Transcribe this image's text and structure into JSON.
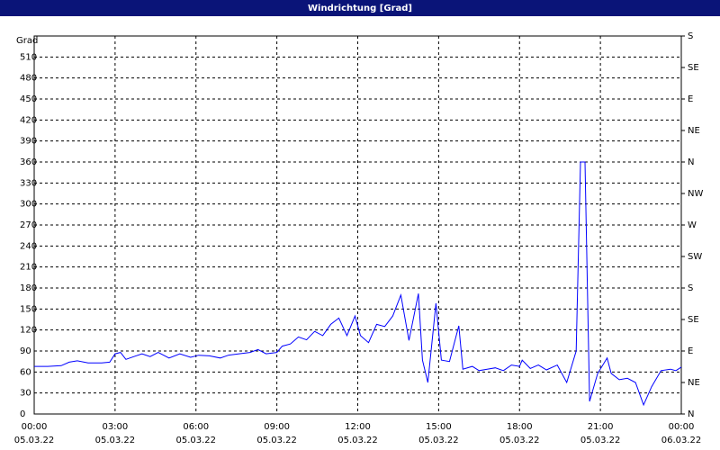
{
  "chart_data": {
    "type": "line",
    "title": "Windrichtung [Grad]",
    "ylabel": "Grad",
    "x": [
      0,
      0.5,
      1,
      1.3,
      1.6,
      2,
      2.5,
      2.8,
      3,
      3.2,
      3.4,
      3.7,
      4,
      4.3,
      4.6,
      5,
      5.4,
      5.8,
      6.1,
      6.5,
      6.9,
      7.2,
      7.6,
      8,
      8.3,
      8.6,
      9,
      9.2,
      9.5,
      9.8,
      10.1,
      10.4,
      10.7,
      11,
      11.3,
      11.6,
      11.9,
      12.1,
      12.4,
      12.7,
      13,
      13.3,
      13.6,
      13.9,
      14.25,
      14.4,
      14.6,
      14.9,
      15.1,
      15.4,
      15.75,
      15.9,
      16.25,
      16.5,
      16.8,
      17.1,
      17.4,
      17.7,
      18,
      18.1,
      18.4,
      18.7,
      19,
      19.4,
      19.75,
      20.1,
      20.26,
      20.43,
      20.6,
      20.9,
      21.25,
      21.4,
      21.7,
      22,
      22.3,
      22.6,
      22.9,
      23.25,
      23.6,
      23.8,
      24
    ],
    "values": [
      68,
      68,
      69,
      74,
      76,
      73,
      73,
      74,
      86,
      88,
      78,
      82,
      86,
      82,
      88,
      80,
      86,
      81,
      84,
      83,
      80,
      84,
      86,
      88,
      92,
      86,
      88,
      97,
      100,
      110,
      106,
      118,
      112,
      128,
      137,
      112,
      140,
      112,
      102,
      128,
      125,
      140,
      170,
      105,
      172,
      77,
      45,
      158,
      77,
      75,
      126,
      64,
      68,
      62,
      64,
      66,
      62,
      70,
      68,
      77,
      65,
      70,
      63,
      70,
      45,
      90,
      360,
      360,
      18,
      58,
      80,
      58,
      49,
      51,
      45,
      13,
      39,
      62,
      64,
      62,
      67
    ],
    "color": "#0000ff",
    "xlim": [
      0,
      24
    ],
    "xticks": [
      {
        "value": 0,
        "label": "00:00"
      },
      {
        "value": 3,
        "label": "03:00"
      },
      {
        "value": 6,
        "label": "06:00"
      },
      {
        "value": 9,
        "label": "09:00"
      },
      {
        "value": 12,
        "label": "12:00"
      },
      {
        "value": 15,
        "label": "15:00"
      },
      {
        "value": 18,
        "label": "18:00"
      },
      {
        "value": 21,
        "label": "21:00"
      },
      {
        "value": 24,
        "label": "00:00"
      }
    ],
    "xtick_dates": [
      "05.03.22",
      "05.03.22",
      "05.03.22",
      "05.03.22",
      "05.03.22",
      "05.03.22",
      "05.03.22",
      "05.03.22",
      "06.03.22"
    ],
    "ylim": [
      0,
      540
    ],
    "yticks": [
      0,
      30,
      60,
      90,
      120,
      150,
      180,
      210,
      240,
      270,
      300,
      330,
      360,
      390,
      420,
      450,
      480,
      510
    ],
    "y2lim": [
      0,
      540
    ],
    "y2ticks": [
      {
        "value": 0,
        "label": "N"
      },
      {
        "value": 45,
        "label": "NE"
      },
      {
        "value": 90,
        "label": "E"
      },
      {
        "value": 135,
        "label": "SE"
      },
      {
        "value": 180,
        "label": "S"
      },
      {
        "value": 225,
        "label": "SW"
      },
      {
        "value": 270,
        "label": "W"
      },
      {
        "value": 315,
        "label": "NW"
      },
      {
        "value": 360,
        "label": "N"
      },
      {
        "value": 405,
        "label": "NE"
      },
      {
        "value": 450,
        "label": "E"
      },
      {
        "value": 495,
        "label": "SE"
      },
      {
        "value": 540,
        "label": "S"
      }
    ],
    "grid": true
  }
}
